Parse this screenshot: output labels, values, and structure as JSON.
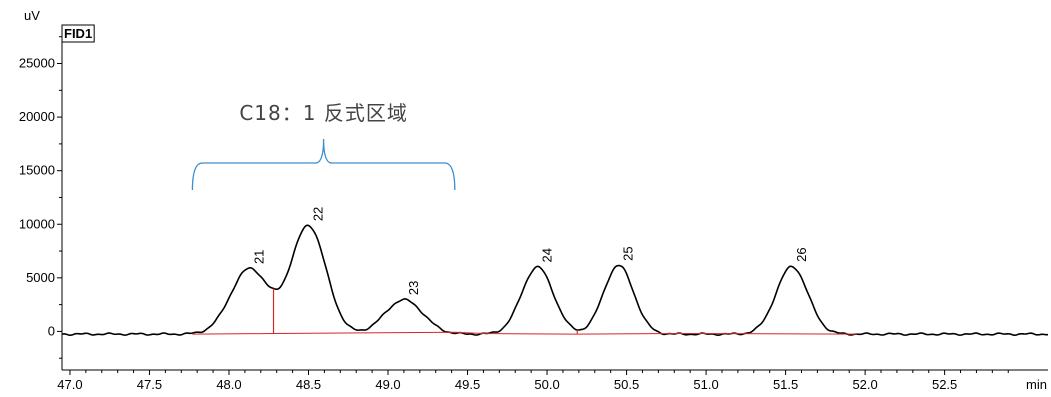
{
  "chart_data": {
    "type": "line",
    "title": "",
    "detector_label": "FID1",
    "y_unit_label": "uV",
    "x_unit_label": "min",
    "xlim": [
      46.95,
      53.15
    ],
    "ylim": [
      -3600,
      28500
    ],
    "x_ticks": [
      "47.0",
      "47.5",
      "48.0",
      "48.5",
      "49.0",
      "49.5",
      "50.0",
      "50.5",
      "51.0",
      "51.5",
      "52.0",
      "52.5"
    ],
    "y_ticks": [
      "0",
      "5000",
      "10000",
      "15000",
      "20000",
      "25000"
    ],
    "grid": false,
    "baseline_level": -250,
    "peaks": [
      {
        "label": "21",
        "rt": 48.13,
        "height": 6100,
        "width": 0.12
      },
      {
        "label": "22",
        "rt": 48.5,
        "height": 10100,
        "width": 0.11
      },
      {
        "label": "23",
        "rt": 49.1,
        "height": 3200,
        "width": 0.12
      },
      {
        "label": "24",
        "rt": 49.94,
        "height": 6250,
        "width": 0.1
      },
      {
        "label": "25",
        "rt": 50.45,
        "height": 6400,
        "width": 0.095
      },
      {
        "label": "26",
        "rt": 51.54,
        "height": 6300,
        "width": 0.1
      }
    ],
    "integration_baseline": {
      "x": [
        47.77,
        48.28,
        49.42,
        49.6,
        50.19,
        50.87,
        51.95
      ],
      "y": [
        -250,
        -200,
        -80,
        -200,
        -250,
        -200,
        -250
      ]
    },
    "drop_lines": [
      48.28,
      50.19
    ],
    "annotations": [
      {
        "text": "C18：1 反式区域",
        "x_start": 47.77,
        "x_end": 49.42
      }
    ],
    "colors": {
      "trace": "#000000",
      "baseline": "#d62728",
      "bracket": "#3b8fd0"
    }
  }
}
